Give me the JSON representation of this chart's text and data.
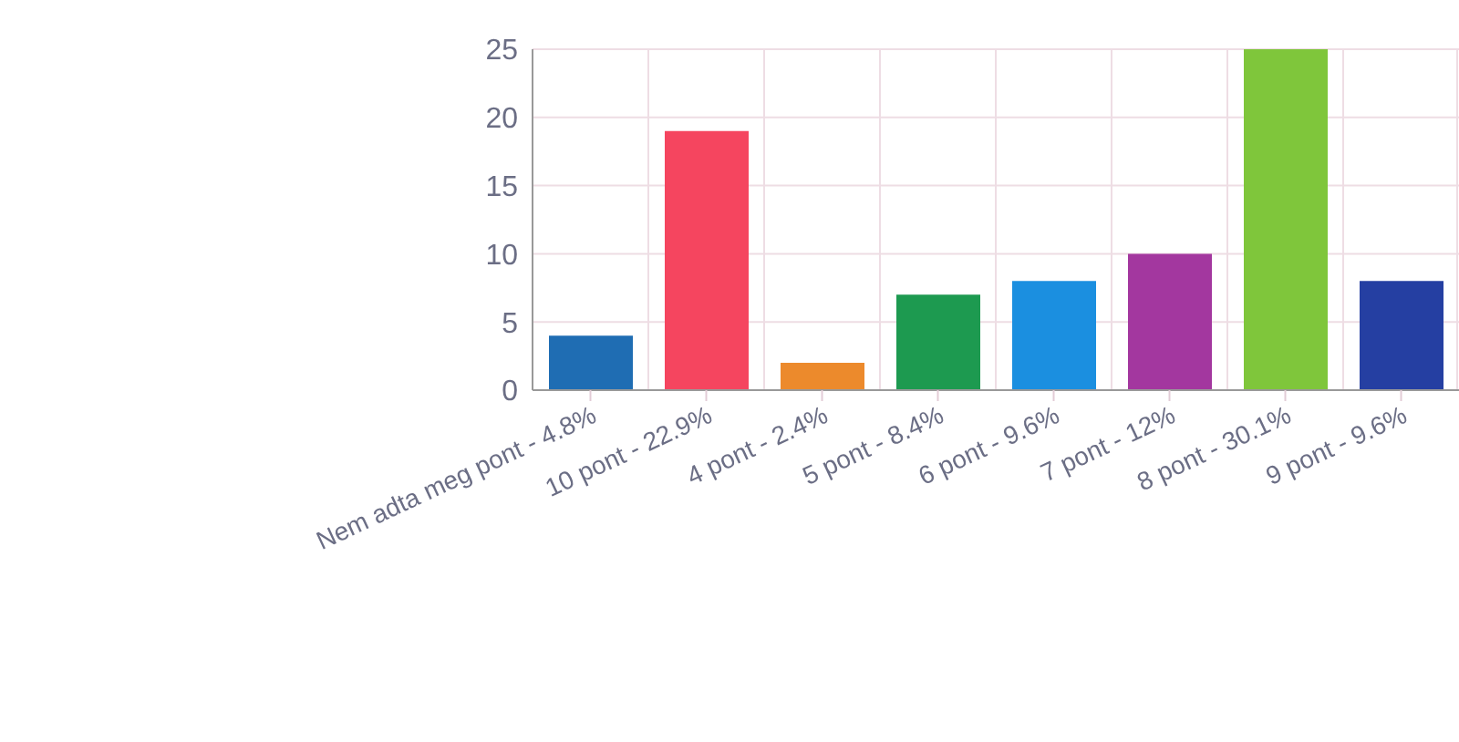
{
  "chart_data": {
    "type": "bar",
    "categories": [
      "Nem adta meg pont - 4.8%",
      "10 pont - 22.9%",
      "4 pont - 2.4%",
      "5 pont - 8.4%",
      "6 pont - 9.6%",
      "7 pont - 12%",
      "8 pont - 30.1%",
      "9 pont - 9.6%"
    ],
    "values": [
      4,
      19,
      2,
      7,
      8,
      10,
      25,
      8
    ],
    "colors": [
      "#1f6db3",
      "#f5455f",
      "#ec8a2c",
      "#1d9a50",
      "#1b8fe0",
      "#a3379f",
      "#7fc63b",
      "#253fa2"
    ],
    "ylim": [
      0,
      25
    ],
    "yticks": [
      0,
      5,
      10,
      15,
      20,
      25
    ],
    "grid": true
  }
}
